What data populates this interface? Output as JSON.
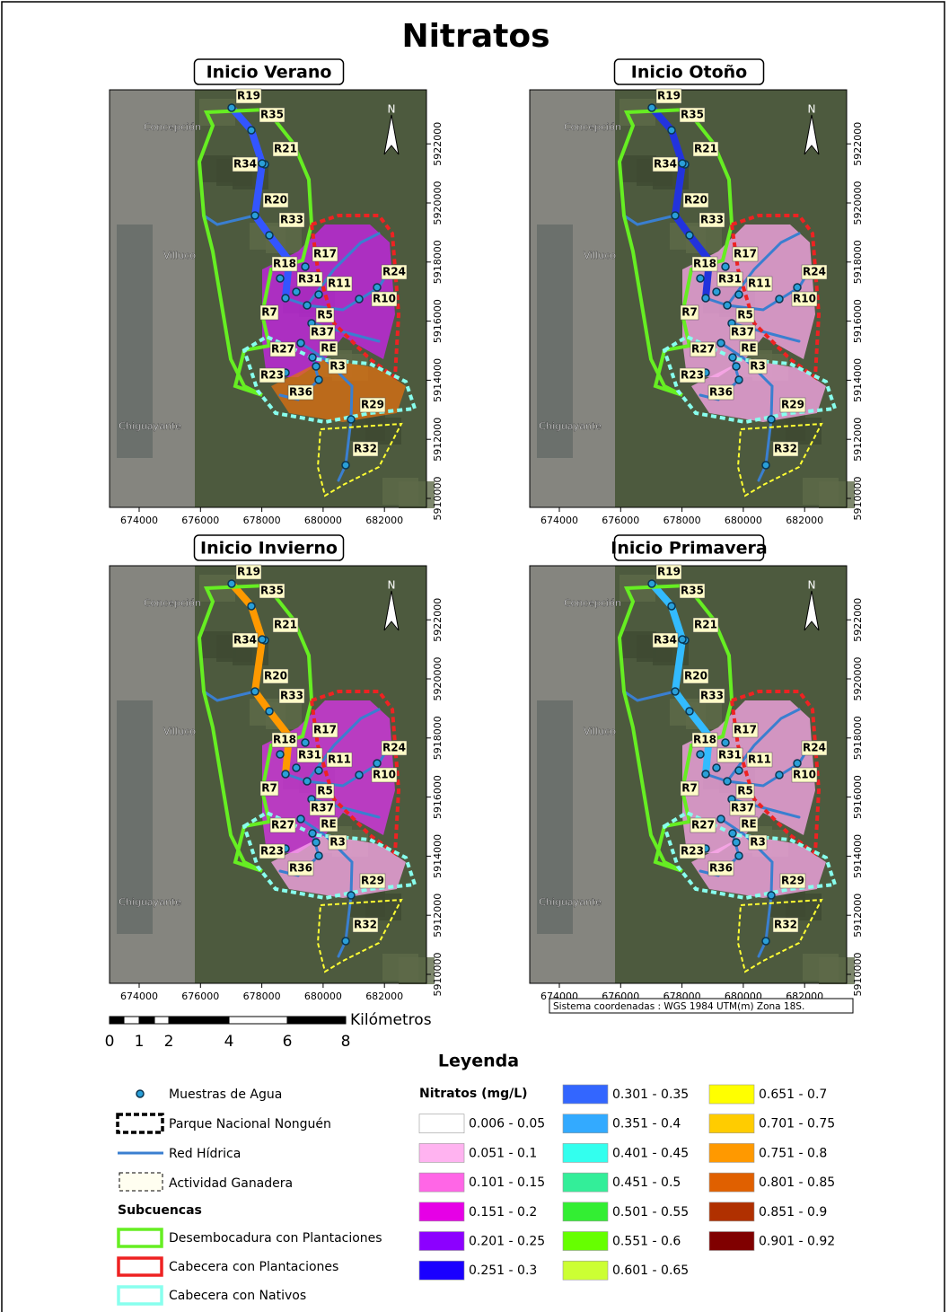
{
  "title": "Nitratos",
  "panels": [
    {
      "title": "Inicio Verano",
      "stream_colors": [
        "#3355ff",
        "#cc22ee",
        "#e07010"
      ]
    },
    {
      "title": "Inicio Otoño",
      "stream_colors": [
        "#2233dd",
        "#ffaaee",
        "#ffaaee"
      ]
    },
    {
      "title": "Inicio Invierno",
      "stream_colors": [
        "#ff9900",
        "#dd33ee",
        "#ffaaee"
      ]
    },
    {
      "title": "Inicio Primavera",
      "stream_colors": [
        "#33bbff",
        "#ffaaee",
        "#ffaaee"
      ]
    }
  ],
  "sites": [
    "R19",
    "R35",
    "R21",
    "R34",
    "R20",
    "R33",
    "R17",
    "R18",
    "R31",
    "R11",
    "R24",
    "R10",
    "R7",
    "R5",
    "R37",
    "R27",
    "RE",
    "R3",
    "R23",
    "R36",
    "R29",
    "R32"
  ],
  "places": [
    "Concepción",
    "Villuco",
    "Chiguayante"
  ],
  "north": "N",
  "xticks": [
    674000,
    676000,
    678000,
    680000,
    682000
  ],
  "yticks": [
    5910000,
    5912000,
    5914000,
    5916000,
    5918000,
    5920000,
    5922000
  ],
  "scale_bar": {
    "unit": "Kilómetros",
    "labels": [
      "0",
      "1",
      "2",
      "4",
      "6",
      "8"
    ]
  },
  "coordinate_note": "Sistema coordenadas : WGS 1984 UTM(m) Zona 18S.",
  "legend": {
    "title": "Leyenda",
    "items": [
      "Muestras de Agua",
      "Parque Nacional Nonguén",
      "Red Hídrica",
      "Actividad Ganadera"
    ],
    "subbasins_title": "Subcuencas",
    "subbasins": [
      {
        "label": "Desembocadura con Plantaciones",
        "color": "#66ee22"
      },
      {
        "label": "Cabecera con Plantaciones",
        "color": "#ee2222"
      },
      {
        "label": "Cabecera con Nativos",
        "color": "#88ffee"
      }
    ],
    "nitrate_title": "Nitratos (mg/L)",
    "classes": [
      {
        "label": "0.006 - 0.05",
        "color": "#ffffff"
      },
      {
        "label": "0.051 - 0.1",
        "color": "#ffb3f0"
      },
      {
        "label": "0.101 - 0.15",
        "color": "#ff66e6"
      },
      {
        "label": "0.151 - 0.2",
        "color": "#e600e6"
      },
      {
        "label": "0.201 - 0.25",
        "color": "#8c00ff"
      },
      {
        "label": "0.251 - 0.3",
        "color": "#1a00ff"
      },
      {
        "label": "0.301 - 0.35",
        "color": "#3366ff"
      },
      {
        "label": "0.351 - 0.4",
        "color": "#33aaff"
      },
      {
        "label": "0.401 - 0.45",
        "color": "#33ffee"
      },
      {
        "label": "0.451 - 0.5",
        "color": "#33ee99"
      },
      {
        "label": "0.501 - 0.55",
        "color": "#33ee33"
      },
      {
        "label": "0.551 - 0.6",
        "color": "#66ff00"
      },
      {
        "label": "0.601 - 0.65",
        "color": "#ccff33"
      },
      {
        "label": "0.651 - 0.7",
        "color": "#ffff00"
      },
      {
        "label": "0.701 - 0.75",
        "color": "#ffcc00"
      },
      {
        "label": "0.751 - 0.8",
        "color": "#ff9900"
      },
      {
        "label": "0.801 - 0.85",
        "color": "#e06000"
      },
      {
        "label": "0.851 - 0.9",
        "color": "#b03000"
      },
      {
        "label": "0.901 - 0.92",
        "color": "#800000"
      }
    ]
  }
}
